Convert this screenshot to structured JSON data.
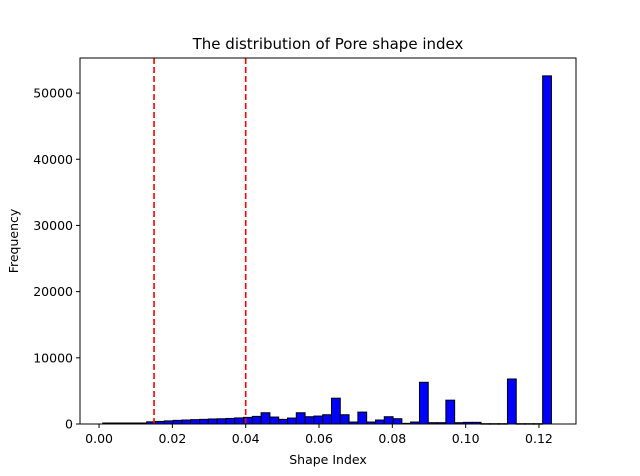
{
  "chart_data": {
    "type": "bar",
    "title": "The distribution of Pore shape index",
    "xlabel": "Shape Index",
    "ylabel": "Frequency",
    "xlim": [
      -0.0052,
      0.1301
    ],
    "ylim": [
      0,
      55300
    ],
    "x_ticks": [
      "0.00",
      "0.02",
      "0.04",
      "0.06",
      "0.08",
      "0.10",
      "0.12"
    ],
    "x_tick_values": [
      0,
      0.02,
      0.04,
      0.06,
      0.08,
      0.1,
      0.12
    ],
    "y_ticks": [
      "0",
      "10000",
      "20000",
      "30000",
      "40000",
      "50000"
    ],
    "y_tick_values": [
      0,
      10000,
      20000,
      30000,
      40000,
      50000
    ],
    "bin_start": 0.001,
    "bin_width": 0.0024,
    "values": [
      150,
      150,
      150,
      150,
      150,
      330,
      390,
      470,
      550,
      600,
      660,
      700,
      760,
      790,
      840,
      920,
      1000,
      1150,
      1700,
      1050,
      700,
      900,
      1700,
      1100,
      1200,
      1400,
      3900,
      1400,
      300,
      1800,
      300,
      600,
      1100,
      800,
      100,
      300,
      6300,
      200,
      200,
      3600,
      200,
      250,
      250,
      50,
      50,
      50,
      6800,
      50,
      50,
      50,
      52600
    ],
    "bar_color": "#0000ff",
    "edge_color": "#000000",
    "reference_lines": [
      {
        "x": 0.015,
        "color": "#ff0000",
        "style": "dashed"
      },
      {
        "x": 0.04,
        "color": "#ff0000",
        "style": "dashed"
      }
    ],
    "grid": false,
    "legend": "none"
  }
}
